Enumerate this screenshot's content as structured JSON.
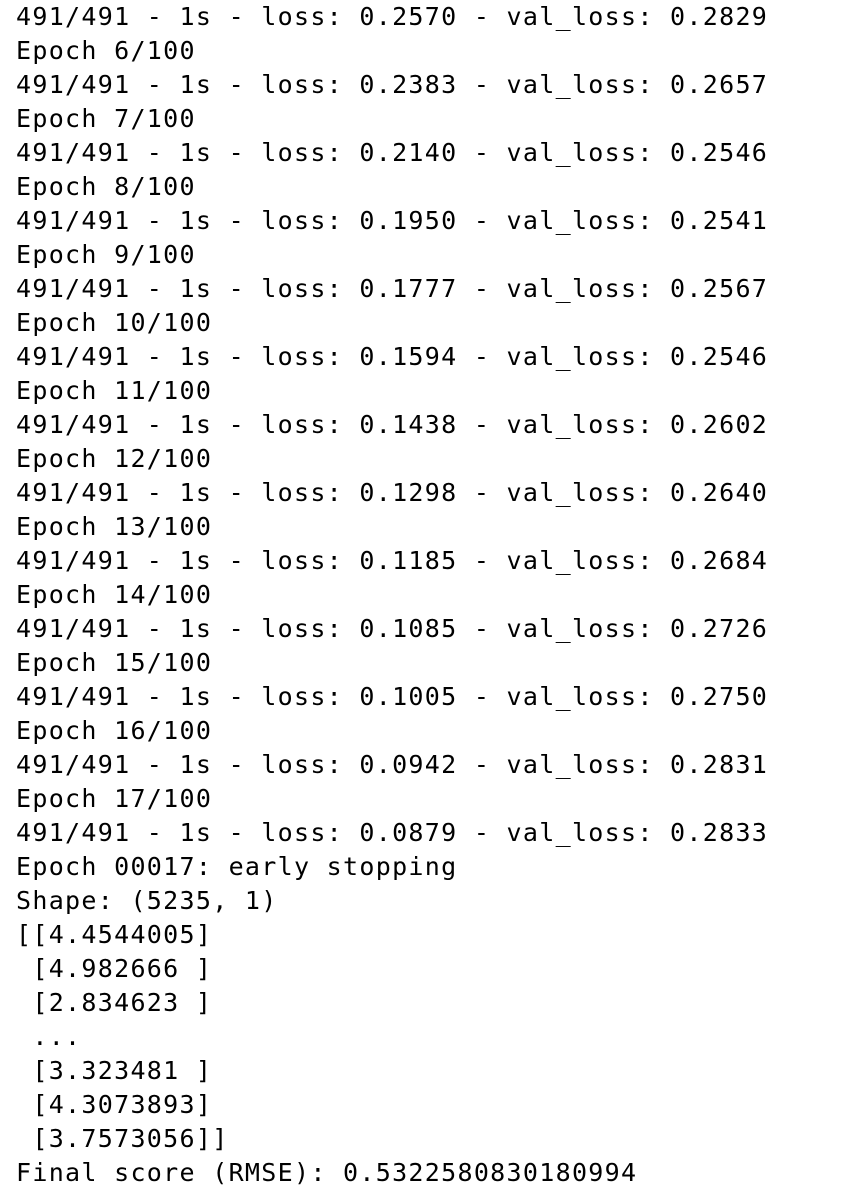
{
  "console": {
    "lines": [
      "491/491 - 1s - loss: 0.2570 - val_loss: 0.2829",
      "Epoch 6/100",
      "491/491 - 1s - loss: 0.2383 - val_loss: 0.2657",
      "Epoch 7/100",
      "491/491 - 1s - loss: 0.2140 - val_loss: 0.2546",
      "Epoch 8/100",
      "491/491 - 1s - loss: 0.1950 - val_loss: 0.2541",
      "Epoch 9/100",
      "491/491 - 1s - loss: 0.1777 - val_loss: 0.2567",
      "Epoch 10/100",
      "491/491 - 1s - loss: 0.1594 - val_loss: 0.2546",
      "Epoch 11/100",
      "491/491 - 1s - loss: 0.1438 - val_loss: 0.2602",
      "Epoch 12/100",
      "491/491 - 1s - loss: 0.1298 - val_loss: 0.2640",
      "Epoch 13/100",
      "491/491 - 1s - loss: 0.1185 - val_loss: 0.2684",
      "Epoch 14/100",
      "491/491 - 1s - loss: 0.1085 - val_loss: 0.2726",
      "Epoch 15/100",
      "491/491 - 1s - loss: 0.1005 - val_loss: 0.2750",
      "Epoch 16/100",
      "491/491 - 1s - loss: 0.0942 - val_loss: 0.2831",
      "Epoch 17/100",
      "491/491 - 1s - loss: 0.0879 - val_loss: 0.2833",
      "Epoch 00017: early stopping",
      "Shape: (5235, 1)",
      "[[4.4544005]",
      " [4.982666 ]",
      " [2.834623 ]",
      " ...",
      " [3.323481 ]",
      " [4.3073893]",
      " [3.7573056]]",
      "Final score (RMSE): 0.5322580830180994"
    ]
  }
}
